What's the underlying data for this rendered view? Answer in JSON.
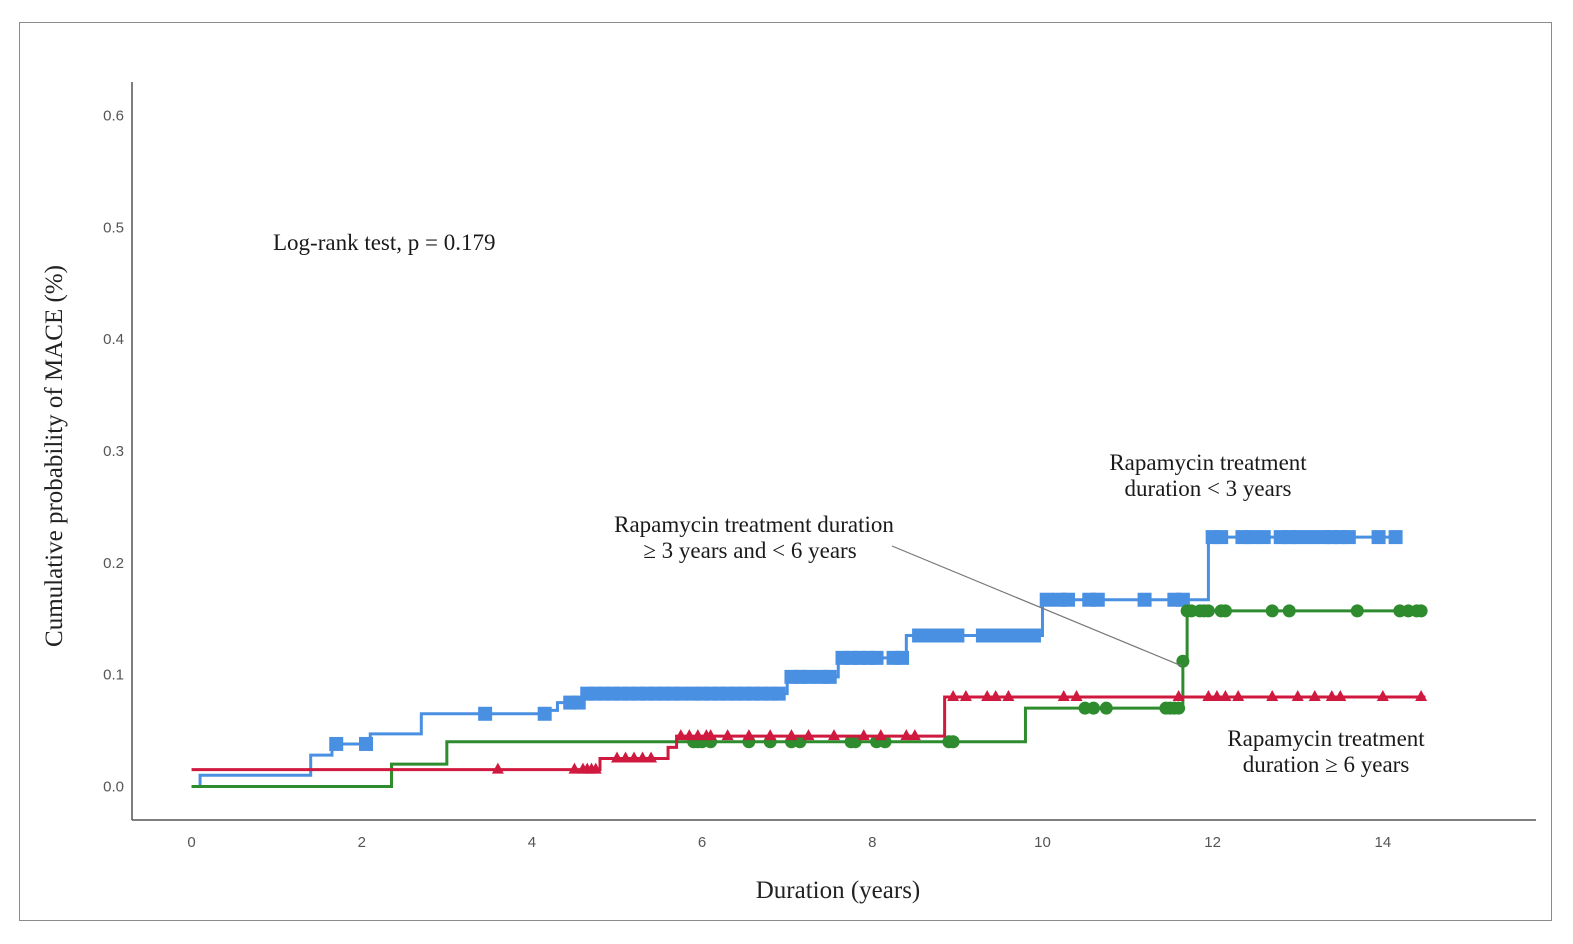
{
  "chart_data": {
    "type": "line",
    "subtype": "kaplan-meier step",
    "xlabel": "Duration (years)",
    "ylabel": "Cumulative probability of MACE (%)",
    "xlim": [
      -0.7,
      15.8
    ],
    "ylim": [
      -0.03,
      0.63
    ],
    "x_ticks": [
      0,
      2,
      4,
      6,
      8,
      10,
      12,
      14
    ],
    "y_ticks": [
      0.0,
      0.1,
      0.2,
      0.3,
      0.4,
      0.5,
      0.6
    ],
    "x_tick_labels": [
      "0",
      "2",
      "4",
      "6",
      "8",
      "10",
      "12",
      "14"
    ],
    "y_tick_labels": [
      "0.0",
      "0.1",
      "0.2",
      "0.3",
      "0.4",
      "0.5",
      "0.6"
    ],
    "grid": false,
    "annotations": {
      "test": "Log-rank test, p = 0.179",
      "group_lt3": [
        "Rapamycin treatment",
        "duration < 3 years"
      ],
      "group_3to6": [
        "Rapamycin treatment duration",
        "≥ 3 years and < 6 years"
      ],
      "group_ge6": [
        "Rapamycin treatment",
        "duration ≥ 6 years"
      ]
    },
    "series": [
      {
        "color": "#4a90e2",
        "marker": "square",
        "steps": [
          [
            0,
            0
          ],
          [
            0.1,
            0.01
          ],
          [
            1.4,
            0.028
          ],
          [
            1.65,
            0.038
          ],
          [
            2.1,
            0.047
          ],
          [
            2.7,
            0.065
          ],
          [
            4.2,
            0.068
          ],
          [
            4.3,
            0.075
          ],
          [
            4.6,
            0.083
          ],
          [
            7.0,
            0.098
          ],
          [
            7.6,
            0.115
          ],
          [
            8.4,
            0.135
          ],
          [
            10.0,
            0.167
          ],
          [
            11.95,
            0.223
          ],
          [
            14.2,
            0.223
          ]
        ],
        "censor": [
          1.7,
          2.05,
          3.45,
          4.15,
          4.45,
          4.55,
          4.65,
          4.75,
          4.85,
          4.95,
          5.05,
          5.15,
          5.25,
          5.35,
          5.45,
          5.55,
          5.65,
          5.75,
          5.9,
          6.0,
          6.1,
          6.2,
          6.3,
          6.4,
          6.5,
          6.6,
          6.7,
          6.8,
          6.9,
          7.05,
          7.15,
          7.25,
          7.4,
          7.5,
          7.65,
          7.75,
          7.85,
          7.95,
          8.05,
          8.25,
          8.35,
          8.55,
          8.65,
          8.75,
          8.85,
          9.0,
          9.3,
          9.4,
          9.5,
          9.6,
          9.7,
          9.8,
          9.9,
          10.05,
          10.2,
          10.3,
          10.55,
          10.65,
          11.2,
          11.55,
          11.65,
          12.0,
          12.1,
          12.35,
          12.45,
          12.6,
          12.8,
          12.9,
          13.0,
          13.15,
          13.3,
          13.4,
          13.5,
          13.6,
          13.95,
          14.15
        ]
      },
      {
        "color": "#2e8b2e",
        "marker": "circle",
        "steps": [
          [
            0,
            0
          ],
          [
            2.35,
            0.02
          ],
          [
            3.0,
            0.04
          ],
          [
            9.8,
            0.07
          ],
          [
            11.65,
            0.112
          ],
          [
            11.7,
            0.157
          ],
          [
            14.5,
            0.157
          ]
        ],
        "censor": [
          5.9,
          5.95,
          6.0,
          6.1,
          6.55,
          6.8,
          7.05,
          7.15,
          7.75,
          7.8,
          8.05,
          8.15,
          8.9,
          8.95,
          10.5,
          10.6,
          10.75,
          11.45,
          11.5,
          11.55,
          11.6,
          11.65,
          11.7,
          11.75,
          11.85,
          11.9,
          11.95,
          12.1,
          12.15,
          12.7,
          12.9,
          13.7,
          14.2,
          14.3,
          14.4,
          14.45
        ]
      },
      {
        "color": "#d0193e",
        "marker": "triangle",
        "steps": [
          [
            0,
            0.015
          ],
          [
            4.8,
            0.025
          ],
          [
            5.6,
            0.035
          ],
          [
            5.7,
            0.045
          ],
          [
            8.85,
            0.08
          ],
          [
            14.5,
            0.08
          ]
        ],
        "censor": [
          3.6,
          4.5,
          4.6,
          4.65,
          4.7,
          4.75,
          5.0,
          5.1,
          5.2,
          5.3,
          5.4,
          5.75,
          5.85,
          5.95,
          6.05,
          6.1,
          6.3,
          6.55,
          6.8,
          7.05,
          7.25,
          7.55,
          7.9,
          8.1,
          8.4,
          8.5,
          8.95,
          9.1,
          9.35,
          9.45,
          9.6,
          10.25,
          10.4,
          11.6,
          11.95,
          12.05,
          12.15,
          12.3,
          12.7,
          13.0,
          13.2,
          13.4,
          13.5,
          14.0,
          14.45
        ]
      }
    ]
  }
}
